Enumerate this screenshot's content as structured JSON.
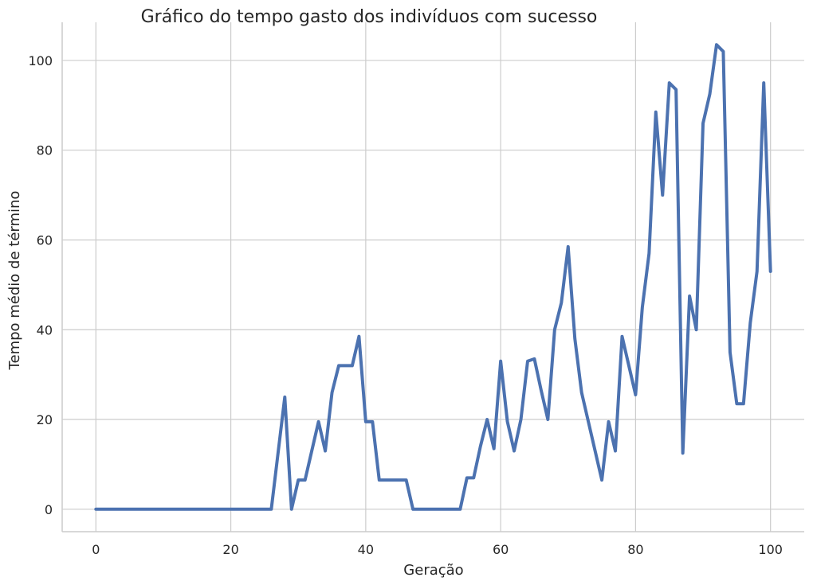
{
  "chart_data": {
    "type": "line",
    "title": "Gráfico do tempo gasto dos indivíduos com sucesso",
    "xlabel": "Geração",
    "ylabel": "Tempo médio de término",
    "xlim": [
      -5,
      105
    ],
    "ylim": [
      -5,
      108.5
    ],
    "xticks": [
      0,
      20,
      40,
      60,
      80,
      100
    ],
    "yticks": [
      0,
      20,
      40,
      60,
      80,
      100
    ],
    "xtick_labels": [
      "0",
      "20",
      "40",
      "60",
      "80",
      "100"
    ],
    "ytick_labels": [
      "0",
      "20",
      "40",
      "60",
      "80",
      "100"
    ],
    "grid": true,
    "color": "#4c72b0",
    "series": [
      {
        "x": [
          0,
          1,
          2,
          3,
          4,
          5,
          6,
          7,
          8,
          9,
          10,
          11,
          12,
          13,
          14,
          15,
          16,
          17,
          18,
          19,
          20,
          21,
          22,
          23,
          24,
          25,
          26,
          27,
          28,
          29,
          30,
          31,
          32,
          33,
          34,
          35,
          36,
          37,
          38,
          39,
          40,
          41,
          42,
          43,
          44,
          45,
          46,
          47,
          48,
          49,
          50,
          51,
          52,
          53,
          54,
          55,
          56,
          57,
          58,
          59,
          60,
          61,
          62,
          63,
          64,
          65,
          66,
          67,
          68,
          69,
          70,
          71,
          72,
          73,
          74,
          75,
          76,
          77,
          78,
          79,
          80,
          81,
          82,
          83,
          84,
          85,
          86,
          87,
          88,
          89,
          90,
          91,
          92,
          93,
          94,
          95,
          96,
          97,
          98,
          99,
          100
        ],
        "y": [
          0,
          0,
          0,
          0,
          0,
          0,
          0,
          0,
          0,
          0,
          0,
          0,
          0,
          0,
          0,
          0,
          0,
          0,
          0,
          0,
          0,
          0,
          0,
          0,
          0,
          0,
          0,
          12.5,
          25,
          0,
          6.5,
          6.5,
          13,
          19.5,
          13,
          26,
          32,
          32,
          32,
          38.5,
          19.5,
          19.5,
          6.5,
          6.5,
          6.5,
          6.5,
          6.5,
          0,
          0,
          0,
          0,
          0,
          0,
          0,
          0,
          7,
          7,
          14,
          20,
          13.5,
          33,
          19.5,
          13,
          20,
          33,
          33.5,
          26.5,
          20,
          40,
          46,
          58.5,
          38,
          26,
          19.5,
          13,
          6.5,
          19.5,
          13,
          38.5,
          32,
          25.5,
          45,
          57,
          88.5,
          70,
          95,
          93.5,
          12.5,
          47.5,
          40,
          86,
          92.5,
          103.5,
          102,
          35,
          23.5,
          23.5,
          41.5,
          53,
          95,
          53
        ]
      }
    ]
  }
}
